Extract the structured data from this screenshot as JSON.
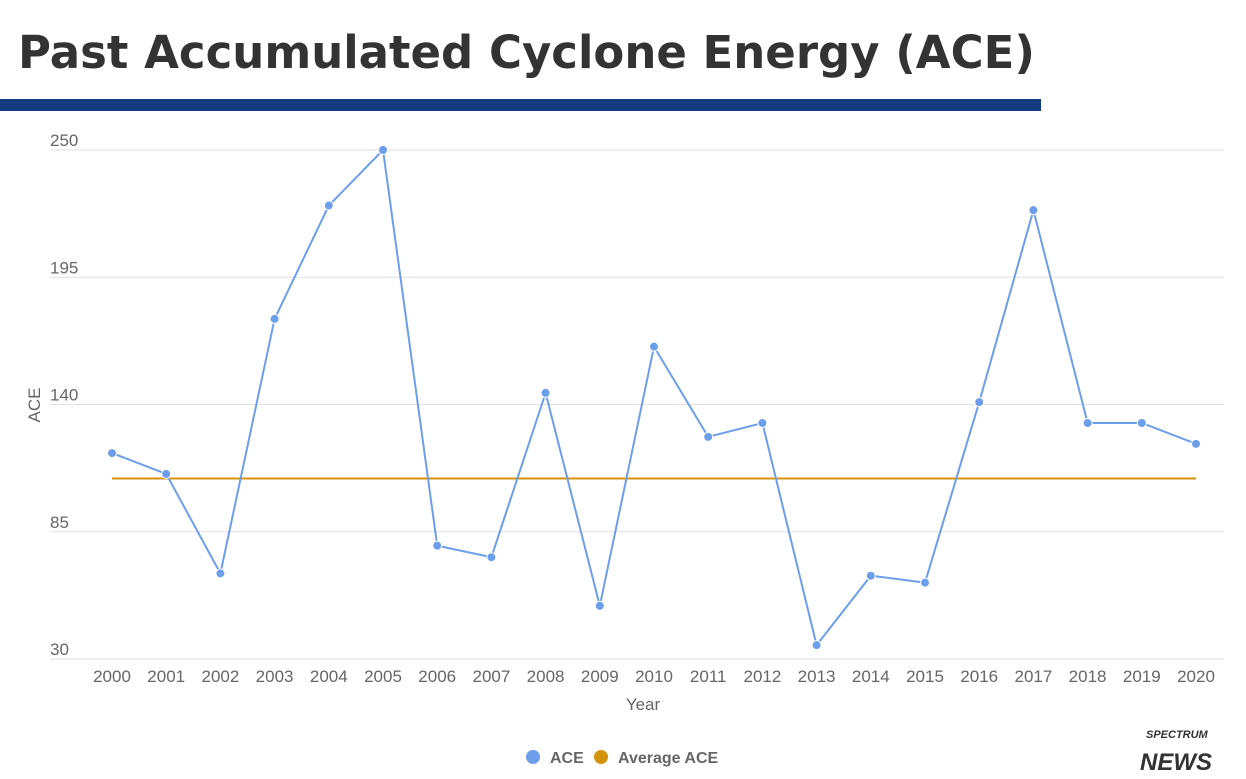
{
  "title": "Past Accumulated Cyclone Energy (ACE)",
  "logo": {
    "line1": "SPECTRUM",
    "line2": "NEWS"
  },
  "chart_data": {
    "type": "line",
    "title": "Past Accumulated Cyclone Energy (ACE)",
    "xlabel": "Year",
    "ylabel": "ACE",
    "ylim": [
      30,
      250
    ],
    "yticks": [
      30,
      85,
      140,
      195,
      250
    ],
    "grid": true,
    "legend_position": "bottom",
    "categories": [
      "2000",
      "2001",
      "2002",
      "2003",
      "2004",
      "2005",
      "2006",
      "2007",
      "2008",
      "2009",
      "2010",
      "2011",
      "2012",
      "2013",
      "2014",
      "2015",
      "2016",
      "2017",
      "2018",
      "2019",
      "2020"
    ],
    "series": [
      {
        "name": "ACE",
        "color": "#6d9eeb",
        "values": [
          119,
          110,
          67,
          177,
          226,
          250,
          79,
          74,
          145,
          53,
          165,
          126,
          132,
          36,
          66,
          63,
          141,
          224,
          132,
          132,
          123
        ]
      },
      {
        "name": "Average ACE",
        "color": "#d4930d",
        "values": [
          108,
          108,
          108,
          108,
          108,
          108,
          108,
          108,
          108,
          108,
          108,
          108,
          108,
          108,
          108,
          108,
          108,
          108,
          108,
          108,
          108
        ]
      }
    ]
  }
}
